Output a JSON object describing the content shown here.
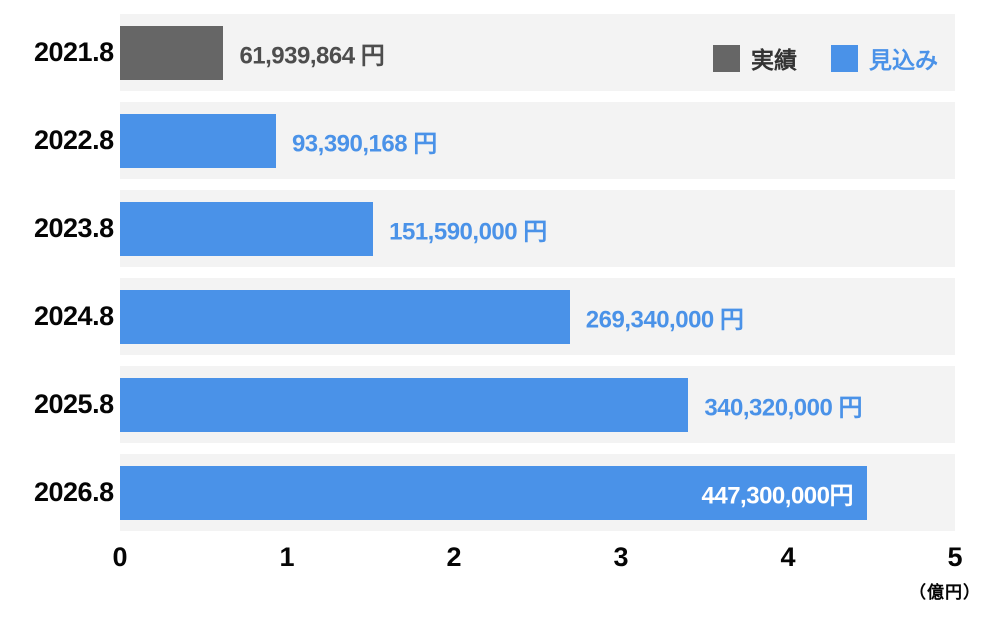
{
  "chart_data": {
    "type": "bar",
    "orientation": "horizontal",
    "unit_label": "（億円）",
    "x_ticks": [
      "0",
      "1",
      "2",
      "3",
      "4",
      "5"
    ],
    "xlim_yen": [
      0,
      500000000
    ],
    "categories": [
      "2021.8",
      "2022.8",
      "2023.8",
      "2024.8",
      "2025.8",
      "2026.8"
    ],
    "bars": [
      {
        "category": "2021.8",
        "value_yen": 61939864,
        "label": "61,939,864 円",
        "series": "実績",
        "color": "#666666",
        "label_color": "#4d4d4d",
        "label_inside": false
      },
      {
        "category": "2022.8",
        "value_yen": 93390168,
        "label": "93,390,168 円",
        "series": "見込み",
        "color": "#4a92e8",
        "label_color": "#4a92e8",
        "label_inside": false
      },
      {
        "category": "2023.8",
        "value_yen": 151590000,
        "label": "151,590,000 円",
        "series": "見込み",
        "color": "#4a92e8",
        "label_color": "#4a92e8",
        "label_inside": false
      },
      {
        "category": "2024.8",
        "value_yen": 269340000,
        "label": "269,340,000 円",
        "series": "見込み",
        "color": "#4a92e8",
        "label_color": "#4a92e8",
        "label_inside": false
      },
      {
        "category": "2025.8",
        "value_yen": 340320000,
        "label": "340,320,000 円",
        "series": "見込み",
        "color": "#4a92e8",
        "label_color": "#4a92e8",
        "label_inside": false
      },
      {
        "category": "2026.8",
        "value_yen": 447300000,
        "label": "447,300,000円",
        "series": "見込み",
        "color": "#4a92e8",
        "label_color": "#ffffff",
        "label_inside": true
      }
    ],
    "legend": [
      {
        "label": "実績",
        "swatch_color": "#666666",
        "text_color": "#333333"
      },
      {
        "label": "見込み",
        "swatch_color": "#4a92e8",
        "text_color": "#4a92e8"
      }
    ]
  }
}
